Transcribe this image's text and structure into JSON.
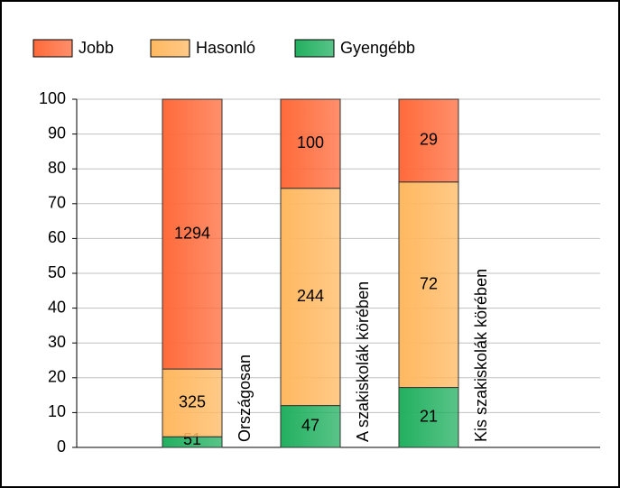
{
  "chart_data": {
    "type": "bar",
    "stacking": "percent",
    "categories": [
      "Országosan",
      "A szakiskolák körében",
      "Kis szakiskolák körében"
    ],
    "series": [
      {
        "name": "Gyengébb",
        "color": "#22b060",
        "values": [
          51,
          47,
          21
        ]
      },
      {
        "name": "Hasonló",
        "color": "#ffb860",
        "values": [
          325,
          244,
          72
        ]
      },
      {
        "name": "Jobb",
        "color": "#ff6a3a",
        "values": [
          1294,
          100,
          29
        ]
      }
    ],
    "legend_order": [
      2,
      1,
      0
    ],
    "ylim": [
      0,
      100
    ],
    "yticks": [
      0,
      10,
      20,
      30,
      40,
      50,
      60,
      70,
      80,
      90,
      100
    ],
    "grid": true
  }
}
